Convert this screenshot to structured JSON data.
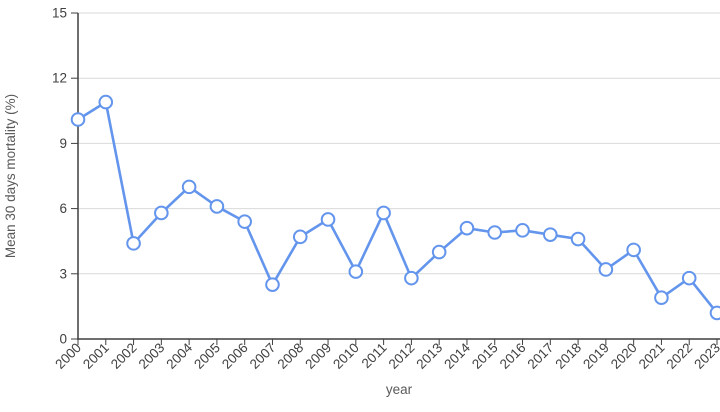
{
  "chart_data": {
    "type": "line",
    "title": "",
    "xlabel": "year",
    "ylabel": "Mean 30 days mortality (%)",
    "x": [
      2000,
      2001,
      2002,
      2003,
      2004,
      2005,
      2006,
      2007,
      2008,
      2009,
      2010,
      2011,
      2012,
      2013,
      2014,
      2015,
      2016,
      2017,
      2018,
      2019,
      2020,
      2021,
      2022,
      2023
    ],
    "series": [
      {
        "name": "Mean 30 days mortality (%)",
        "values": [
          10.1,
          10.9,
          4.4,
          5.8,
          7.0,
          6.1,
          5.4,
          2.5,
          4.7,
          5.5,
          3.1,
          5.8,
          2.8,
          4.0,
          5.1,
          4.9,
          5.0,
          4.8,
          4.6,
          3.2,
          4.1,
          1.9,
          2.8,
          1.2
        ]
      }
    ],
    "ylim": [
      0,
      15
    ],
    "yticks": [
      0,
      3,
      6,
      9,
      12,
      15
    ],
    "grid": "horizontal-only",
    "legend": "none",
    "colors": {
      "line": "#6495ED",
      "marker_fill": "#ffffff",
      "gridline": "#d9d9d9",
      "axis": "#3f3f3f",
      "tick_text": "#404040",
      "axis_title_text": "#595959",
      "background": "#ffffff"
    },
    "marker": "open-circle"
  }
}
